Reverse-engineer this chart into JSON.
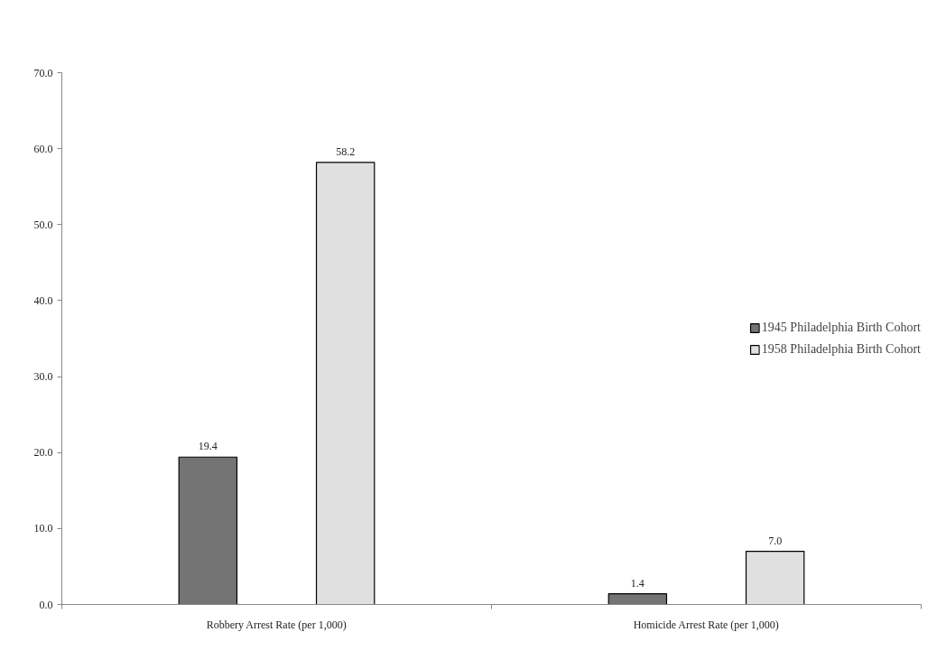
{
  "chart_data": {
    "type": "bar",
    "categories": [
      "Robbery Arrest Rate (per 1,000)",
      "Homicide Arrest Rate (per 1,000)"
    ],
    "series": [
      {
        "name": "1945 Philadelphia Birth Cohort",
        "color": "#747474",
        "values": [
          19.4,
          1.4
        ],
        "value_labels": [
          "19.4",
          "1.4"
        ]
      },
      {
        "name": "1958 Philadelphia Birth Cohort",
        "color": "#e0e0e0",
        "values": [
          58.2,
          7.0
        ],
        "value_labels": [
          "58.2",
          "7.0"
        ]
      }
    ],
    "ylim": [
      0,
      70
    ],
    "yticks": [
      {
        "value": 0,
        "label": "0.0"
      },
      {
        "value": 10,
        "label": "10.0"
      },
      {
        "value": 20,
        "label": "20.0"
      },
      {
        "value": 30,
        "label": "30.0"
      },
      {
        "value": 40,
        "label": "40.0"
      },
      {
        "value": 50,
        "label": "50.0"
      },
      {
        "value": 60,
        "label": "60.0"
      },
      {
        "value": 70,
        "label": "70.0"
      }
    ],
    "grid": false,
    "legend": "right"
  }
}
